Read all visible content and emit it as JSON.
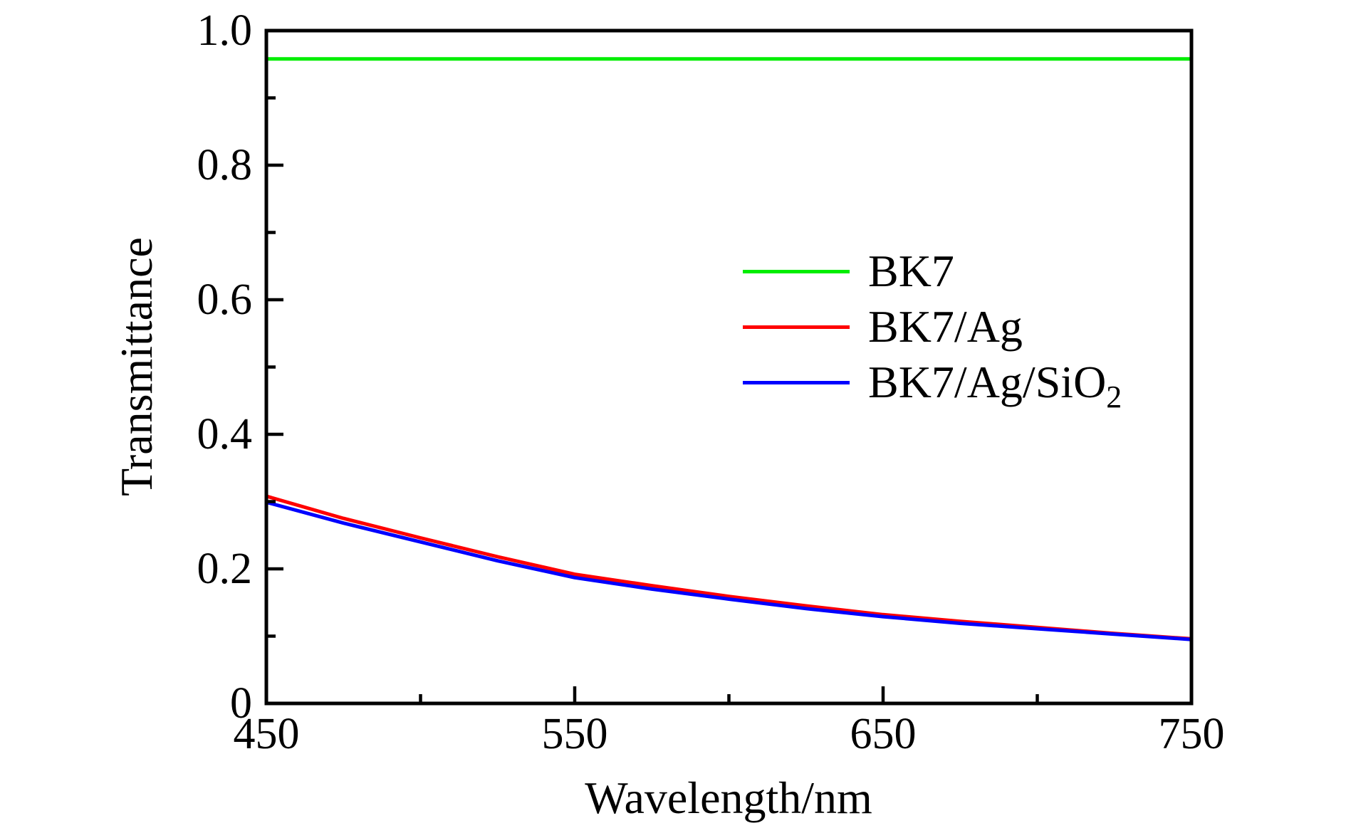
{
  "chart_data": {
    "type": "line",
    "title": "",
    "xlabel": "Wavelength/nm",
    "ylabel": "Transmittance",
    "xlim": [
      450,
      750
    ],
    "ylim": [
      0,
      1.0
    ],
    "grid": false,
    "frame": "full-box",
    "tick_direction": "in",
    "legend_position": "upper-right-inside",
    "x_ticks": [
      {
        "value": 450,
        "label": "450"
      },
      {
        "value": 550,
        "label": "550"
      },
      {
        "value": 650,
        "label": "650"
      },
      {
        "value": 750,
        "label": "750"
      }
    ],
    "x_minor_ticks": [
      500,
      600,
      700
    ],
    "y_ticks": [
      {
        "value": 0,
        "label": "0"
      },
      {
        "value": 0.2,
        "label": "0.2"
      },
      {
        "value": 0.4,
        "label": "0.4"
      },
      {
        "value": 0.6,
        "label": "0.6"
      },
      {
        "value": 0.8,
        "label": "0.8"
      },
      {
        "value": 1.0,
        "label": "1.0"
      }
    ],
    "y_minor_ticks": [
      0.1,
      0.3,
      0.5,
      0.7,
      0.9
    ],
    "series": [
      {
        "name": "BK7",
        "color": "#00ee00",
        "x": [
          450,
          750
        ],
        "y": [
          0.958,
          0.958
        ]
      },
      {
        "name": "BK7/Ag",
        "color": "#ff0000",
        "x": [
          450,
          475,
          500,
          525,
          550,
          575,
          600,
          625,
          650,
          675,
          700,
          725,
          750
        ],
        "y": [
          0.308,
          0.275,
          0.246,
          0.218,
          0.192,
          0.175,
          0.159,
          0.145,
          0.132,
          0.122,
          0.113,
          0.104,
          0.096
        ]
      },
      {
        "name": "BK7/Ag/SiO2",
        "color": "#0000ff",
        "x": [
          450,
          475,
          500,
          525,
          550,
          575,
          600,
          625,
          650,
          675,
          700,
          725,
          750
        ],
        "y": [
          0.299,
          0.268,
          0.24,
          0.212,
          0.187,
          0.17,
          0.155,
          0.141,
          0.129,
          0.119,
          0.111,
          0.103,
          0.095
        ]
      }
    ]
  },
  "legend": {
    "items": [
      {
        "label": "BK7",
        "subscript": ""
      },
      {
        "label": "BK7/Ag",
        "subscript": ""
      },
      {
        "label": "BK7/Ag/SiO",
        "subscript": "2"
      }
    ]
  },
  "colors": {
    "axis": "#000000",
    "background": "#ffffff",
    "bk7": "#00ee00",
    "bk7_ag": "#ff0000",
    "bk7_ag_sio2": "#0000ff"
  }
}
